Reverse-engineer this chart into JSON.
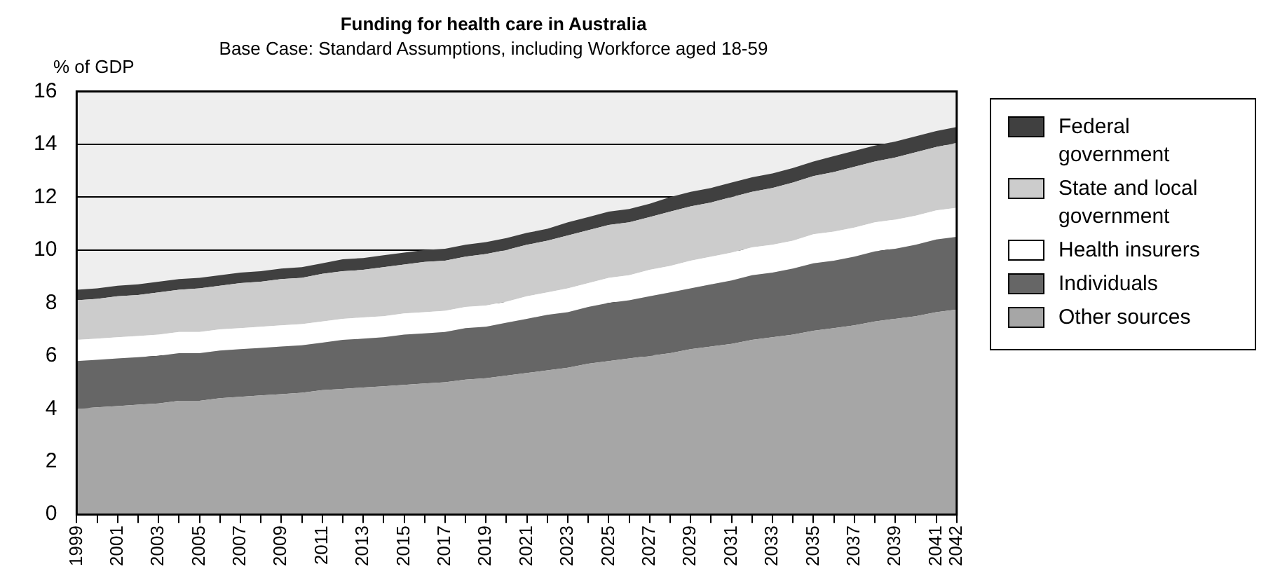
{
  "chart_data": {
    "type": "area",
    "title": "Funding for health care in Australia",
    "subtitle": "Base Case: Standard Assumptions, including Workforce aged 18-59",
    "ylabel": "% of GDP",
    "categories": [
      "1999",
      null,
      "2001",
      null,
      "2003",
      null,
      "2005",
      null,
      "2007",
      null,
      "2009",
      null,
      "2011",
      null,
      "2013",
      null,
      "2015",
      null,
      "2017",
      null,
      "2019",
      null,
      "2021",
      null,
      "2023",
      null,
      "2025",
      null,
      "2027",
      null,
      "2029",
      null,
      "2031",
      null,
      "2033",
      null,
      "2035",
      null,
      "2037",
      null,
      "2039",
      null,
      "2041",
      "2042"
    ],
    "series": [
      {
        "name": "Other sources",
        "color": "#a6a6a6",
        "values": [
          4.0,
          4.05,
          4.1,
          4.15,
          4.2,
          4.3,
          4.3,
          4.4,
          4.45,
          4.5,
          4.55,
          4.6,
          4.7,
          4.75,
          4.8,
          4.85,
          4.9,
          4.95,
          5.0,
          5.1,
          5.15,
          5.25,
          5.35,
          5.45,
          5.55,
          5.7,
          5.8,
          5.9,
          6.0,
          6.1,
          6.25,
          6.35,
          6.45,
          6.6,
          6.7,
          6.8,
          6.95,
          7.05,
          7.15,
          7.3,
          7.4,
          7.5,
          7.65,
          7.75
        ]
      },
      {
        "name": "Individuals",
        "color": "#666666",
        "values": [
          1.8,
          1.8,
          1.8,
          1.8,
          1.8,
          1.8,
          1.8,
          1.8,
          1.8,
          1.8,
          1.8,
          1.8,
          1.8,
          1.85,
          1.85,
          1.85,
          1.9,
          1.9,
          1.9,
          1.95,
          1.95,
          2.0,
          2.05,
          2.1,
          2.1,
          2.15,
          2.2,
          2.2,
          2.25,
          2.3,
          2.3,
          2.35,
          2.4,
          2.45,
          2.45,
          2.5,
          2.55,
          2.55,
          2.6,
          2.65,
          2.65,
          2.7,
          2.75,
          2.75
        ]
      },
      {
        "name": "Health insurers",
        "color": "#ffffff",
        "values": [
          0.8,
          0.8,
          0.8,
          0.8,
          0.8,
          0.8,
          0.8,
          0.8,
          0.8,
          0.8,
          0.8,
          0.8,
          0.8,
          0.8,
          0.8,
          0.8,
          0.8,
          0.8,
          0.8,
          0.8,
          0.8,
          0.8,
          0.85,
          0.85,
          0.9,
          0.9,
          0.95,
          0.95,
          1.0,
          1.0,
          1.05,
          1.05,
          1.05,
          1.05,
          1.05,
          1.05,
          1.1,
          1.1,
          1.1,
          1.1,
          1.1,
          1.1,
          1.1,
          1.1
        ]
      },
      {
        "name": "State and local government",
        "color": "#cccccc",
        "values": [
          1.5,
          1.5,
          1.55,
          1.55,
          1.6,
          1.6,
          1.65,
          1.65,
          1.7,
          1.7,
          1.75,
          1.75,
          1.8,
          1.8,
          1.8,
          1.85,
          1.85,
          1.9,
          1.9,
          1.9,
          1.95,
          1.95,
          1.95,
          1.95,
          2.0,
          2.0,
          2.0,
          2.0,
          2.0,
          2.05,
          2.05,
          2.05,
          2.1,
          2.1,
          2.15,
          2.2,
          2.2,
          2.25,
          2.3,
          2.3,
          2.35,
          2.4,
          2.4,
          2.45
        ]
      },
      {
        "name": "Federal government",
        "color": "#404040",
        "values": [
          0.4,
          0.4,
          0.4,
          0.4,
          0.4,
          0.4,
          0.4,
          0.4,
          0.4,
          0.4,
          0.4,
          0.4,
          0.4,
          0.45,
          0.45,
          0.45,
          0.45,
          0.45,
          0.45,
          0.45,
          0.45,
          0.45,
          0.45,
          0.45,
          0.5,
          0.5,
          0.5,
          0.5,
          0.5,
          0.55,
          0.55,
          0.55,
          0.55,
          0.55,
          0.55,
          0.55,
          0.55,
          0.6,
          0.6,
          0.6,
          0.6,
          0.6,
          0.6,
          0.6
        ]
      }
    ],
    "stacked": true,
    "ylim": [
      0,
      16
    ],
    "yticks": [
      0,
      2,
      4,
      6,
      8,
      10,
      12,
      14,
      16
    ],
    "grid": "y",
    "legend": "right"
  }
}
